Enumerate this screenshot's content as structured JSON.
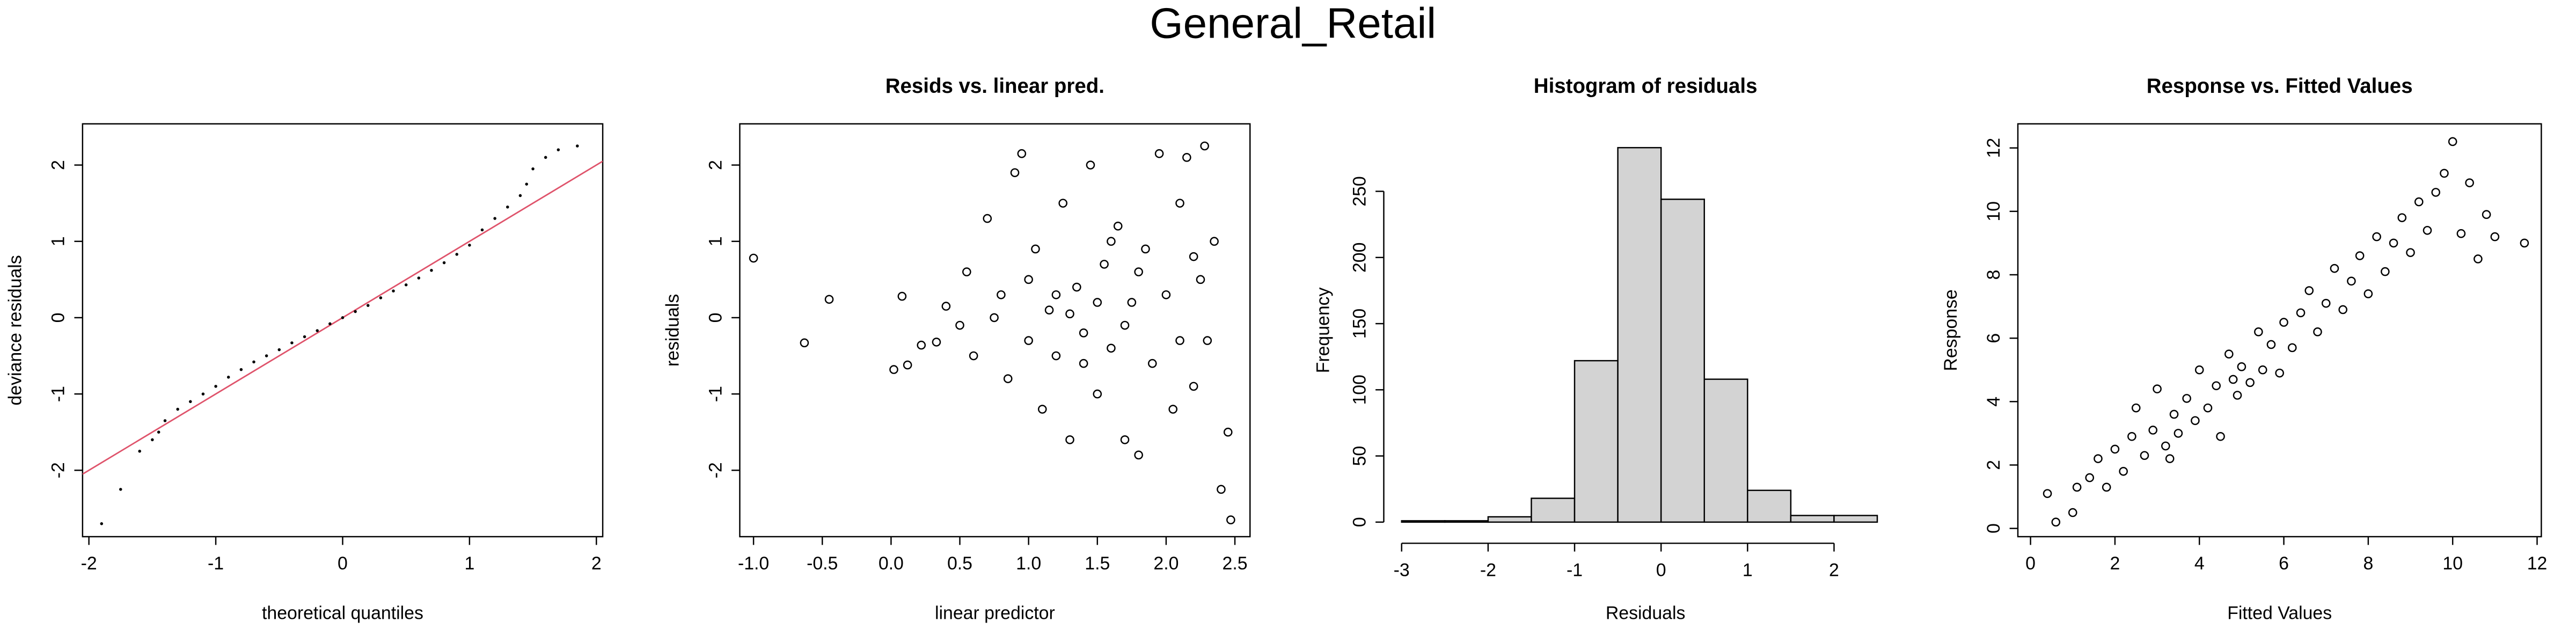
{
  "title": "General_Retail",
  "chart_data": [
    {
      "type": "qq",
      "box": true,
      "xlabel": "theoretical quantiles",
      "ylabel": "deviance residuals",
      "xlim": [
        -2.05,
        2.05
      ],
      "ylim": [
        -2.87,
        2.54
      ],
      "xticks": [
        -2,
        -1,
        0,
        1,
        2
      ],
      "yticks": [
        -2,
        -1,
        0,
        1,
        2
      ],
      "color": "#000000",
      "reference_line": {
        "intercept": 0,
        "slope": 1,
        "color": "#df536b"
      },
      "x": [
        -1.9,
        -1.75,
        -1.6,
        -1.5,
        -1.45,
        -1.4,
        -1.3,
        -1.2,
        -1.1,
        -1.0,
        -0.9,
        -0.8,
        -0.7,
        -0.6,
        -0.5,
        -0.4,
        -0.3,
        -0.2,
        -0.1,
        0,
        0.1,
        0.2,
        0.3,
        0.4,
        0.5,
        0.6,
        0.7,
        0.8,
        0.9,
        1.0,
        1.1,
        1.2,
        1.3,
        1.4,
        1.45,
        1.5,
        1.6,
        1.7,
        1.85
      ],
      "values": [
        -2.7,
        -2.25,
        -1.75,
        -1.6,
        -1.5,
        -1.35,
        -1.2,
        -1.1,
        -1.0,
        -0.9,
        -0.78,
        -0.68,
        -0.58,
        -0.5,
        -0.42,
        -0.33,
        -0.25,
        -0.17,
        -0.08,
        0,
        0.08,
        0.16,
        0.26,
        0.35,
        0.43,
        0.52,
        0.62,
        0.72,
        0.83,
        0.95,
        1.15,
        1.3,
        1.45,
        1.6,
        1.75,
        1.95,
        2.1,
        2.2,
        2.25
      ]
    },
    {
      "type": "scatter",
      "box": true,
      "title": "Resids vs. linear pred.",
      "xlabel": "linear predictor",
      "ylabel": "residuals",
      "xlim": [
        -1.1,
        2.61
      ],
      "ylim": [
        -2.87,
        2.54
      ],
      "xticks": [
        {
          "value": -1,
          "label": "-1.0"
        },
        -0.5,
        {
          "value": 0,
          "label": "0.0"
        },
        0.5,
        {
          "value": 1,
          "label": "1.0"
        },
        1.5,
        {
          "value": 2,
          "label": "2.0"
        },
        2.5
      ],
      "yticks": [
        -2,
        -1,
        0,
        1,
        2
      ],
      "color": "#000000",
      "x": [
        -1.0,
        -0.63,
        -0.45,
        0.08,
        0.02,
        0.12,
        0.22,
        0.33,
        0.4,
        0.5,
        0.55,
        0.6,
        0.7,
        0.8,
        0.85,
        0.9,
        0.95,
        1.0,
        1.05,
        1.1,
        1.15,
        1.2,
        1.25,
        1.3,
        1.35,
        1.4,
        1.45,
        1.5,
        1.55,
        1.6,
        1.65,
        1.7,
        1.75,
        1.8,
        1.85,
        1.9,
        1.95,
        2.0,
        2.05,
        2.1,
        2.15,
        2.2,
        2.25,
        2.28,
        2.3,
        2.35,
        2.4,
        2.45,
        2.47,
        1.3,
        1.5,
        1.7,
        1.2,
        1.0,
        1.8,
        2.1,
        1.4,
        0.75,
        1.6,
        2.2
      ],
      "values": [
        0.78,
        -0.33,
        0.24,
        0.28,
        -0.68,
        -0.62,
        -0.36,
        -0.32,
        0.15,
        -0.1,
        0.6,
        -0.5,
        1.3,
        0.3,
        -0.8,
        1.9,
        2.15,
        -0.3,
        0.9,
        -1.2,
        0.1,
        -0.5,
        1.5,
        -1.6,
        0.4,
        -0.2,
        2.0,
        -1.0,
        0.7,
        -0.4,
        1.2,
        -1.6,
        0.2,
        -1.8,
        0.9,
        -0.6,
        2.15,
        0.3,
        -1.2,
        1.5,
        2.1,
        -0.9,
        0.5,
        2.25,
        -0.3,
        1.0,
        -2.25,
        -1.5,
        -2.65,
        0.05,
        0.2,
        -0.1,
        0.3,
        0.5,
        0.6,
        -0.3,
        -0.6,
        0.0,
        1.0,
        0.8
      ]
    },
    {
      "type": "histogram",
      "box": false,
      "title": "Histogram of residuals",
      "xlabel": "Residuals",
      "ylabel": "Frequency",
      "xlim": [
        -3.13,
        2.77
      ],
      "ylim": [
        -11,
        301
      ],
      "xticks": [
        -3,
        -2,
        -1,
        0,
        1,
        2
      ],
      "yticks": [
        0,
        50,
        100,
        150,
        200,
        250
      ],
      "color": "#d3d3d3",
      "bins": [
        -3,
        -2.5,
        -2,
        -1.5,
        -1,
        -0.5,
        0,
        0.5,
        1,
        1.5,
        2,
        2.5
      ],
      "values": [
        1,
        1,
        4,
        18,
        122,
        283,
        244,
        108,
        24,
        5,
        5
      ]
    },
    {
      "type": "scatter",
      "box": true,
      "title": "Response vs. Fitted Values",
      "xlabel": "Fitted Values",
      "ylabel": "Response",
      "xlim": [
        -0.3,
        12.1
      ],
      "ylim": [
        -0.26,
        12.76
      ],
      "xticks": [
        0,
        2,
        4,
        6,
        8,
        10,
        12
      ],
      "yticks": [
        0,
        2,
        4,
        6,
        8,
        10,
        12
      ],
      "color": "#000000",
      "x": [
        0.4,
        0.6,
        1.0,
        1.1,
        1.4,
        1.6,
        1.8,
        2.0,
        2.2,
        2.4,
        2.5,
        2.7,
        2.9,
        3.0,
        3.2,
        3.4,
        3.5,
        3.7,
        3.9,
        4.0,
        4.2,
        4.4,
        4.5,
        4.7,
        4.9,
        5.0,
        5.2,
        5.4,
        5.5,
        5.7,
        5.9,
        6.0,
        6.2,
        6.4,
        6.6,
        6.8,
        7.0,
        7.2,
        7.4,
        7.6,
        7.8,
        8.0,
        8.2,
        8.4,
        8.6,
        8.8,
        9.0,
        9.2,
        9.4,
        9.6,
        9.8,
        10.0,
        10.2,
        10.4,
        10.6,
        10.8,
        11.0,
        11.7,
        3.3,
        4.8
      ],
      "values": [
        1.1,
        0.2,
        0.5,
        1.3,
        1.6,
        2.2,
        1.3,
        2.5,
        1.8,
        2.9,
        3.8,
        2.3,
        3.1,
        4.4,
        2.6,
        3.6,
        3.0,
        4.1,
        3.4,
        5.0,
        3.8,
        4.5,
        2.9,
        5.5,
        4.2,
        5.1,
        4.6,
        6.2,
        5.0,
        5.8,
        4.9,
        6.5,
        5.7,
        6.8,
        7.5,
        6.2,
        7.1,
        8.2,
        6.9,
        7.8,
        8.6,
        7.4,
        9.2,
        8.1,
        9.0,
        9.8,
        8.7,
        10.3,
        9.4,
        10.6,
        11.2,
        12.2,
        9.3,
        10.9,
        8.5,
        9.9,
        9.2,
        9.0,
        2.2,
        4.7
      ]
    }
  ]
}
